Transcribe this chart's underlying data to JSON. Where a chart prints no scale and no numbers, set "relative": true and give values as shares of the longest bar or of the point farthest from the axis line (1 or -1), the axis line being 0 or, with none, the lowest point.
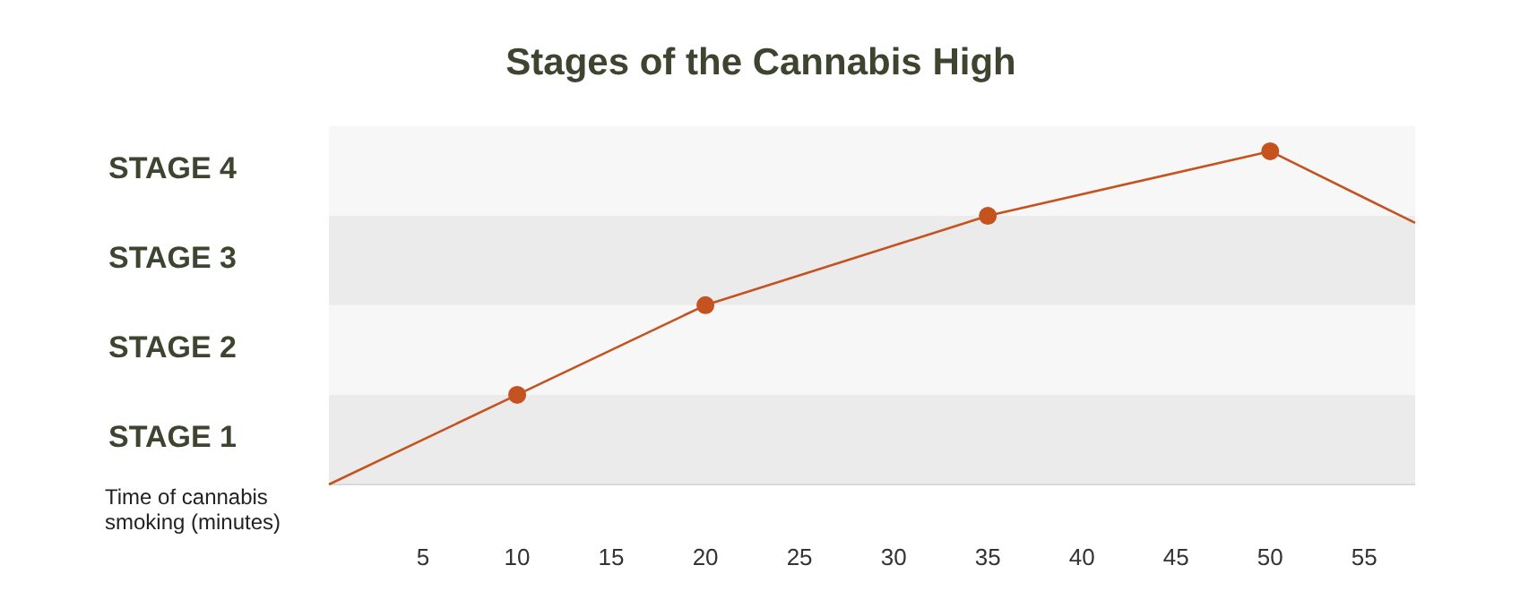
{
  "chart_data": {
    "type": "line",
    "title": "Stages of the Cannabis High",
    "xlabel": "Time of cannabis smoking (minutes)",
    "relative": true,
    "xlim": [
      0,
      57.7
    ],
    "xticks": [
      5,
      10,
      15,
      20,
      25,
      30,
      35,
      40,
      45,
      50,
      55
    ],
    "bands": [
      {
        "axis": "y",
        "from": 0,
        "to": 0.269,
        "color": "#ebebeb"
      },
      {
        "axis": "y",
        "from": 0.269,
        "to": 0.538,
        "color": "#f7f7f7"
      },
      {
        "axis": "y",
        "from": 0.538,
        "to": 0.806,
        "color": "#ebebeb"
      },
      {
        "axis": "y",
        "from": 0.806,
        "to": 1.075,
        "color": "#f7f7f7"
      }
    ],
    "annotations": [
      "STAGE 1",
      "STAGE 2",
      "STAGE 3",
      "STAGE 4"
    ],
    "series": [
      {
        "color": "#c4531f",
        "x": [
          0,
          10,
          20,
          35,
          50,
          57.7
        ],
        "values": [
          0,
          0.269,
          0.538,
          0.806,
          1,
          0.785
        ]
      },
      {
        "type": "scatter",
        "color": "#c4531f",
        "marker": "circle",
        "x": [
          10,
          20,
          35,
          50
        ],
        "values": [
          0.269,
          0.538,
          0.806,
          1
        ]
      }
    ]
  }
}
